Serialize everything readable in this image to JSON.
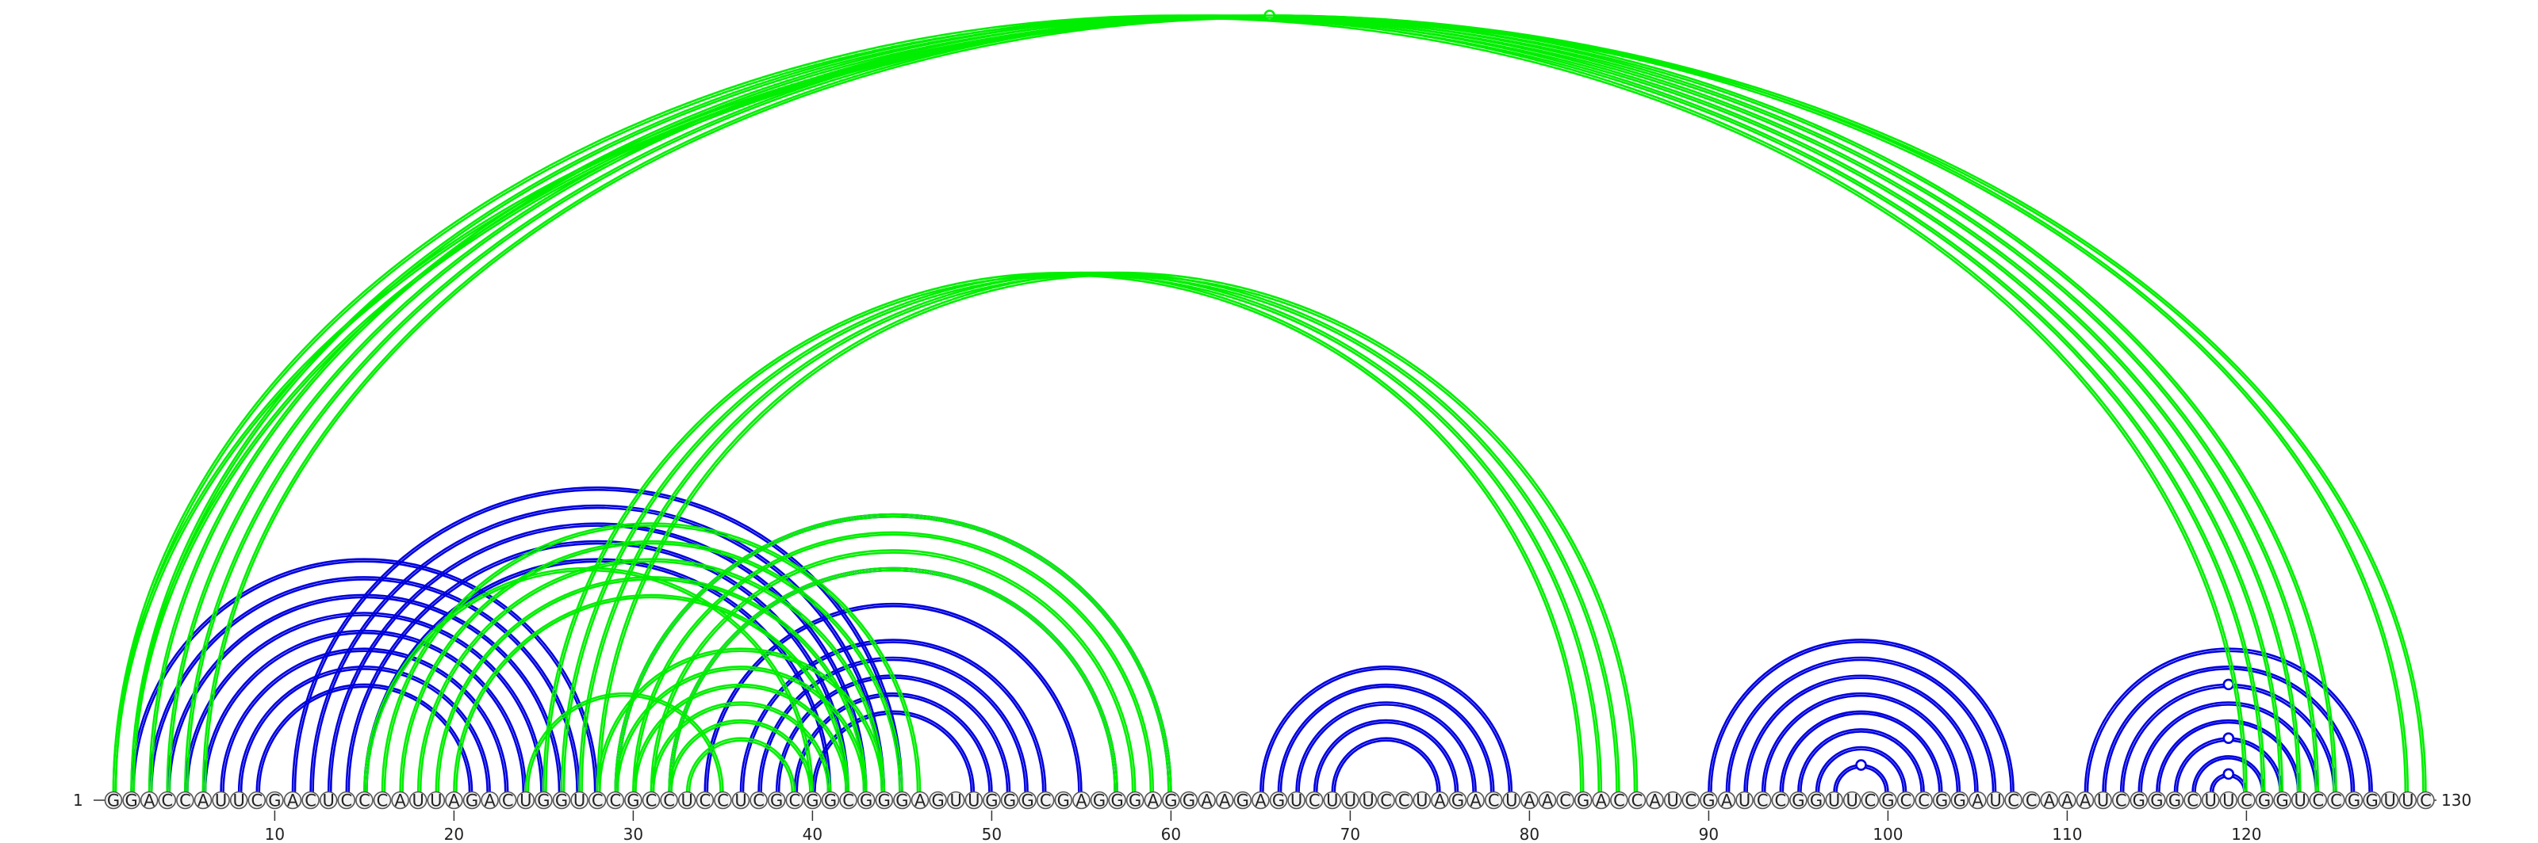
{
  "sequence": "GGACCAUUCGACUCCCAUUAGACUGGUCCGCCUCCUCGCGGCGGGAGUUGGGCGAGGGAGGAAGAGUCUUUCCUAGACUAACGACCAUCGAUCCGGUUCGCCGGAUCCAAAUCGGGCUUCGGUCCGGUUC",
  "start_label": "1",
  "end_label": "130",
  "tick_labels": [
    "10",
    "20",
    "30",
    "40",
    "50",
    "60",
    "70",
    "80",
    "90",
    "100",
    "110",
    "120"
  ],
  "colors": {
    "blue": "#0000dd",
    "green": "#00ee00"
  },
  "arc_groups": [
    {
      "color": "blue",
      "pairs": [
        [
          2,
          28
        ],
        [
          3,
          27
        ],
        [
          4,
          26
        ],
        [
          5,
          25
        ],
        [
          6,
          24
        ],
        [
          7,
          23
        ],
        [
          8,
          22
        ],
        [
          9,
          21
        ]
      ]
    },
    {
      "color": "blue",
      "pairs": [
        [
          11,
          45
        ],
        [
          12,
          44
        ],
        [
          13,
          43
        ],
        [
          14,
          42
        ],
        [
          15,
          41
        ]
      ]
    },
    {
      "color": "blue",
      "pairs": [
        [
          29,
          60
        ],
        [
          32,
          57
        ],
        [
          34,
          55
        ],
        [
          36,
          53
        ],
        [
          37,
          52
        ],
        [
          38,
          51
        ],
        [
          39,
          50
        ],
        [
          40,
          49
        ]
      ]
    },
    {
      "color": "blue",
      "pairs": [
        [
          65,
          79
        ],
        [
          66,
          78
        ],
        [
          67,
          77
        ],
        [
          68,
          76
        ],
        [
          69,
          75
        ]
      ]
    },
    {
      "color": "blue",
      "pairs": [
        [
          90,
          107
        ],
        [
          91,
          106
        ],
        [
          92,
          105
        ],
        [
          93,
          104
        ],
        [
          94,
          103
        ],
        [
          95,
          102
        ],
        [
          96,
          101
        ],
        [
          97,
          100
        ]
      ],
      "marker_on": [
        [
          97,
          100
        ]
      ]
    },
    {
      "color": "blue",
      "pairs": [
        [
          111,
          127
        ],
        [
          112,
          126
        ],
        [
          113,
          125
        ],
        [
          114,
          124
        ],
        [
          115,
          123
        ],
        [
          116,
          122
        ],
        [
          117,
          121
        ],
        [
          118,
          120
        ]
      ],
      "marker_on": [
        [
          113,
          125
        ],
        [
          116,
          122
        ],
        [
          118,
          120
        ]
      ]
    },
    {
      "color": "green",
      "pairs": [
        [
          1,
          120
        ],
        [
          2,
          121
        ],
        [
          3,
          122
        ],
        [
          4,
          123
        ],
        [
          5,
          124
        ],
        [
          6,
          125
        ],
        [
          1,
          130
        ],
        [
          2,
          129
        ]
      ],
      "marker_on": [
        [
          1,
          130
        ]
      ]
    },
    {
      "color": "green",
      "pairs": [
        [
          16,
          46
        ],
        [
          17,
          45
        ],
        [
          18,
          44
        ],
        [
          19,
          43
        ],
        [
          20,
          42
        ],
        [
          15,
          40
        ],
        [
          24,
          35
        ]
      ]
    },
    {
      "color": "green",
      "pairs": [
        [
          25,
          83
        ],
        [
          26,
          84
        ],
        [
          27,
          85
        ],
        [
          28,
          86
        ]
      ]
    },
    {
      "color": "green",
      "pairs": [
        [
          29,
          60
        ],
        [
          30,
          59
        ],
        [
          31,
          58
        ],
        [
          32,
          57
        ]
      ]
    },
    {
      "color": "green",
      "pairs": [
        [
          28,
          44
        ],
        [
          29,
          43
        ],
        [
          30,
          42
        ],
        [
          31,
          41
        ],
        [
          32,
          40
        ],
        [
          33,
          39
        ]
      ]
    }
  ]
}
